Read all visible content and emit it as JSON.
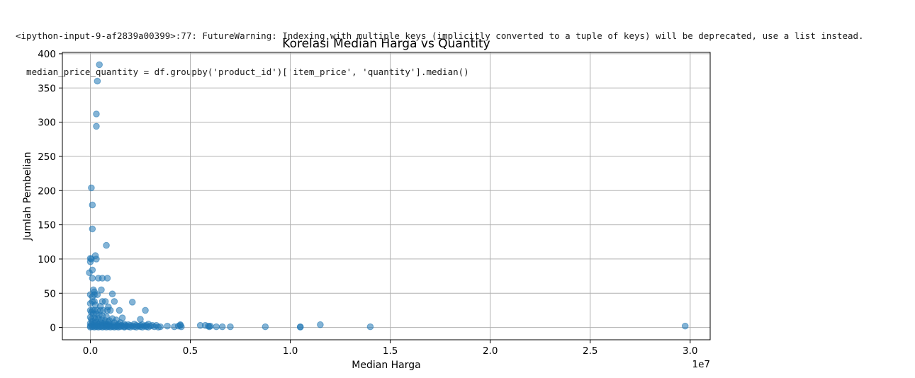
{
  "output": {
    "warning_line1": "<ipython-input-9-af2839a00399>:77: FutureWarning: Indexing with multiple keys (implicitly converted to a tuple of keys) will be deprecated, use a list instead.",
    "warning_line2": "  median_price_quantity = df.groupby('product_id')['item_price', 'quantity'].median()"
  },
  "colors": {
    "marker": "#1f77b4",
    "grid": "#b0b0b0",
    "axes": "#000000"
  },
  "chart_data": {
    "type": "scatter",
    "title": "Korelasi Median Harga vs Quantity",
    "xlabel": "Median Harga",
    "ylabel": "Jumlah Pembelian",
    "x_offset_text": "1e7",
    "xlim": [
      -0.14,
      3.1
    ],
    "ylim": [
      -18,
      402
    ],
    "xticks": [
      0.0,
      0.5,
      1.0,
      1.5,
      2.0,
      2.5,
      3.0
    ],
    "xtick_labels": [
      "0.0",
      "0.5",
      "1.0",
      "1.5",
      "2.0",
      "2.5",
      "3.0"
    ],
    "yticks": [
      0,
      50,
      100,
      150,
      200,
      250,
      300,
      350,
      400
    ],
    "ytick_labels": [
      "0",
      "50",
      "100",
      "150",
      "200",
      "250",
      "300",
      "350",
      "400"
    ],
    "grid": true,
    "marker_alpha": 0.55,
    "series": [
      {
        "points": [
          [
            0.045,
            384
          ],
          [
            0.035,
            360
          ],
          [
            0.03,
            312
          ],
          [
            0.03,
            294
          ],
          [
            0.005,
            204
          ],
          [
            0.01,
            179
          ],
          [
            0.01,
            144
          ],
          [
            0.08,
            120
          ],
          [
            0.025,
            105
          ],
          [
            0.0,
            101
          ],
          [
            0.005,
            100
          ],
          [
            0.03,
            100
          ],
          [
            0.0,
            96
          ],
          [
            0.01,
            84
          ],
          [
            -0.005,
            80
          ],
          [
            0.01,
            72
          ],
          [
            0.04,
            72
          ],
          [
            0.06,
            72
          ],
          [
            0.085,
            72
          ],
          [
            0.015,
            55
          ],
          [
            0.055,
            55
          ],
          [
            0.02,
            52
          ],
          [
            0.11,
            49
          ],
          [
            0.0,
            48
          ],
          [
            0.02,
            48
          ],
          [
            0.035,
            48
          ],
          [
            0.01,
            45
          ],
          [
            0.01,
            38
          ],
          [
            0.02,
            38
          ],
          [
            0.06,
            38
          ],
          [
            0.075,
            38
          ],
          [
            0.12,
            38
          ],
          [
            0.21,
            37
          ],
          [
            0.0,
            35
          ],
          [
            0.025,
            33
          ],
          [
            0.05,
            31
          ],
          [
            0.09,
            30
          ],
          [
            0.0,
            25
          ],
          [
            0.01,
            25
          ],
          [
            0.02,
            25
          ],
          [
            0.035,
            25
          ],
          [
            0.05,
            25
          ],
          [
            0.065,
            25
          ],
          [
            0.085,
            25
          ],
          [
            0.1,
            25
          ],
          [
            0.145,
            25
          ],
          [
            0.275,
            25
          ],
          [
            0.005,
            22
          ],
          [
            0.015,
            20
          ],
          [
            0.03,
            20
          ],
          [
            0.045,
            18
          ],
          [
            0.06,
            17
          ],
          [
            0.08,
            16
          ],
          [
            0.0,
            15
          ],
          [
            0.02,
            14
          ],
          [
            0.04,
            13
          ],
          [
            0.11,
            13
          ],
          [
            0.16,
            14
          ],
          [
            0.25,
            12
          ],
          [
            0.005,
            12
          ],
          [
            0.025,
            11
          ],
          [
            0.055,
            11
          ],
          [
            0.075,
            10
          ],
          [
            0.095,
            10
          ],
          [
            0.13,
            11
          ],
          [
            0.01,
            9
          ],
          [
            0.03,
            8
          ],
          [
            0.05,
            8
          ],
          [
            0.07,
            7
          ],
          [
            0.09,
            8
          ],
          [
            0.12,
            7
          ],
          [
            0.15,
            7
          ],
          [
            0.0,
            6
          ],
          [
            0.02,
            6
          ],
          [
            0.04,
            5
          ],
          [
            0.06,
            6
          ],
          [
            0.08,
            5
          ],
          [
            0.1,
            5
          ],
          [
            0.14,
            5
          ],
          [
            0.17,
            5
          ],
          [
            0.19,
            4
          ],
          [
            0.22,
            5
          ],
          [
            0.26,
            4
          ],
          [
            0.29,
            5
          ],
          [
            0.005,
            4
          ],
          [
            0.015,
            3
          ],
          [
            0.035,
            3
          ],
          [
            0.055,
            3
          ],
          [
            0.075,
            3
          ],
          [
            0.095,
            3
          ],
          [
            0.115,
            3
          ],
          [
            0.135,
            3
          ],
          [
            0.155,
            3
          ],
          [
            0.175,
            3
          ],
          [
            0.2,
            3
          ],
          [
            0.23,
            3
          ],
          [
            0.25,
            3
          ],
          [
            0.28,
            3
          ],
          [
            0.31,
            3
          ],
          [
            0.33,
            3
          ],
          [
            0.0,
            2
          ],
          [
            0.02,
            2
          ],
          [
            0.04,
            2
          ],
          [
            0.06,
            2
          ],
          [
            0.08,
            2
          ],
          [
            0.1,
            2
          ],
          [
            0.12,
            2
          ],
          [
            0.14,
            2
          ],
          [
            0.16,
            2
          ],
          [
            0.18,
            2
          ],
          [
            0.21,
            2
          ],
          [
            0.24,
            2
          ],
          [
            0.27,
            2
          ],
          [
            0.3,
            2
          ],
          [
            0.01,
            1
          ],
          [
            0.03,
            1
          ],
          [
            0.05,
            1
          ],
          [
            0.07,
            1
          ],
          [
            0.09,
            1
          ],
          [
            0.11,
            1
          ],
          [
            0.13,
            1
          ],
          [
            0.15,
            1
          ],
          [
            0.17,
            1
          ],
          [
            0.19,
            1
          ],
          [
            0.22,
            1
          ],
          [
            0.25,
            1
          ],
          [
            0.28,
            1
          ],
          [
            0.32,
            1
          ],
          [
            0.35,
            1
          ],
          [
            0.0,
            0.5
          ],
          [
            0.02,
            0.5
          ],
          [
            0.04,
            0.5
          ],
          [
            0.06,
            0.5
          ],
          [
            0.08,
            0.5
          ],
          [
            0.1,
            0.5
          ],
          [
            0.12,
            0.5
          ],
          [
            0.14,
            0.5
          ],
          [
            0.17,
            0.5
          ],
          [
            0.2,
            0.5
          ],
          [
            0.23,
            0.5
          ],
          [
            0.26,
            0.5
          ],
          [
            0.29,
            0.5
          ],
          [
            0.34,
            0.5
          ],
          [
            0.385,
            2
          ],
          [
            0.42,
            1
          ],
          [
            0.44,
            2
          ],
          [
            0.45,
            3
          ],
          [
            0.455,
            1
          ],
          [
            0.45,
            4
          ],
          [
            0.55,
            3
          ],
          [
            0.575,
            3
          ],
          [
            0.59,
            2
          ],
          [
            0.595,
            1
          ],
          [
            0.6,
            2
          ],
          [
            0.63,
            1
          ],
          [
            0.66,
            1
          ],
          [
            0.7,
            1
          ],
          [
            0.875,
            1
          ],
          [
            1.05,
            1
          ],
          [
            1.05,
            0.5
          ],
          [
            1.15,
            4
          ],
          [
            1.4,
            1
          ],
          [
            2.975,
            2
          ]
        ]
      }
    ]
  }
}
